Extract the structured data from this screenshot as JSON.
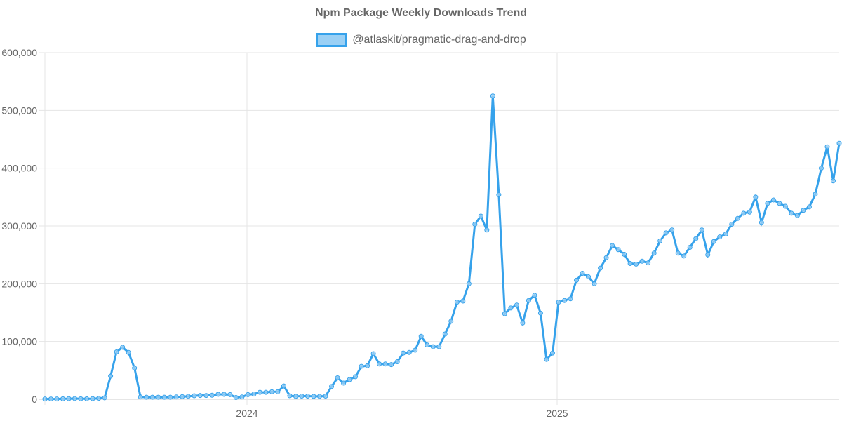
{
  "chart_data": {
    "type": "line",
    "title": "Npm Package Weekly Downloads Trend",
    "xlabel": "",
    "ylabel": "",
    "ylim": [
      0,
      600000
    ],
    "yticks": [
      "0",
      "100,000",
      "200,000",
      "300,000",
      "400,000",
      "500,000",
      "600,000"
    ],
    "xticks": [
      "2024",
      "2025"
    ],
    "grid": true,
    "legend_position": "top",
    "series": [
      {
        "name": "@atlaskit/pragmatic-drag-and-drop",
        "color": "#36a2eb",
        "fill": "#9ad0f5",
        "values": [
          500,
          500,
          500,
          800,
          1000,
          1200,
          800,
          800,
          1000,
          1500,
          2500,
          40000,
          82000,
          90000,
          81000,
          54000,
          4000,
          3500,
          3500,
          3500,
          3500,
          3500,
          4000,
          4500,
          5000,
          6000,
          6500,
          6500,
          7000,
          8500,
          8500,
          8000,
          3000,
          4000,
          8000,
          9000,
          12000,
          12000,
          13000,
          13000,
          23000,
          6000,
          5000,
          5500,
          5500,
          5000,
          5000,
          5500,
          22000,
          37000,
          28000,
          34000,
          39000,
          57000,
          58000,
          79000,
          61000,
          61000,
          60000,
          65000,
          80000,
          81000,
          85000,
          109000,
          94000,
          91000,
          91000,
          113000,
          135000,
          168000,
          170000,
          200000,
          303000,
          317000,
          293000,
          525000,
          354000,
          148000,
          158000,
          163000,
          132000,
          171000,
          180000,
          149000,
          69000,
          80000,
          168000,
          171000,
          174000,
          206000,
          218000,
          212000,
          200000,
          227000,
          245000,
          266000,
          259000,
          251000,
          235000,
          234000,
          239000,
          236000,
          253000,
          274000,
          288000,
          293000,
          253000,
          248000,
          263000,
          278000,
          293000,
          250000,
          273000,
          281000,
          286000,
          303000,
          313000,
          322000,
          324000,
          350000,
          306000,
          339000,
          345000,
          339000,
          334000,
          322000,
          318000,
          327000,
          333000,
          355000,
          400000,
          437000,
          378000,
          443000
        ]
      }
    ]
  },
  "legend": {
    "label": "@atlaskit/pragmatic-drag-and-drop"
  }
}
